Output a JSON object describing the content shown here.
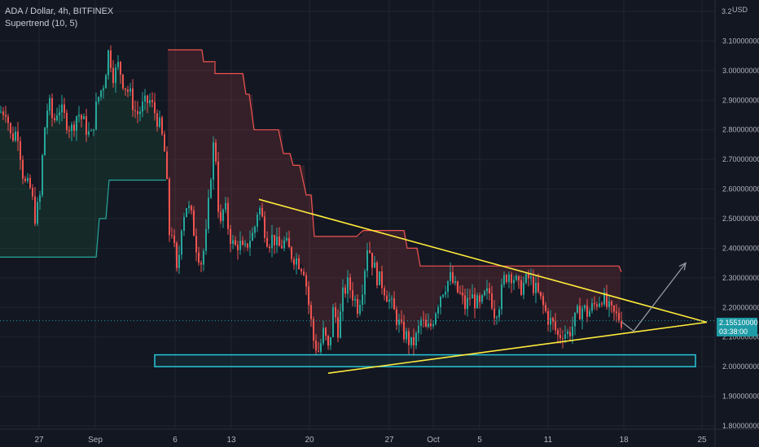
{
  "header": {
    "title": "ADA / Dollar, 4h, BITFINEX",
    "indicator": "Supertrend (10, 5)"
  },
  "price_scale": {
    "unit": "USD",
    "last_price": "2.155",
    "last_price_suffix": "10000",
    "countdown": "03:38:00"
  },
  "chart_data": {
    "type": "candlestick",
    "symbol": "ADA / Dollar",
    "interval": "4h",
    "exchange": "BITFINEX",
    "indicator": "Supertrend (10, 5)",
    "x_ticks": [
      "27",
      "Sep",
      "6",
      "13",
      "20",
      "27",
      "Oct",
      "5",
      "11",
      "18",
      "25"
    ],
    "y_ticks": [
      "3.2",
      "3.100000000",
      "3.000000000",
      "2.900000000",
      "2.800000000",
      "2.700000000",
      "2.600000000",
      "2.500000000",
      "2.400000000",
      "2.300000000",
      "2.200000000",
      "2.100000000",
      "2.000000000",
      "1.900000000",
      "1.800000000"
    ],
    "ylim": [
      1.8,
      3.2
    ],
    "price_path": [
      [
        0,
        2.86
      ],
      [
        8,
        2.87
      ],
      [
        14,
        2.77
      ],
      [
        22,
        2.8
      ],
      [
        30,
        2.62
      ],
      [
        38,
        2.6
      ],
      [
        44,
        2.5
      ],
      [
        50,
        2.58
      ],
      [
        54,
        2.78
      ],
      [
        60,
        2.9
      ],
      [
        66,
        2.82
      ],
      [
        72,
        2.88
      ],
      [
        80,
        2.84
      ],
      [
        88,
        2.8
      ],
      [
        96,
        2.86
      ],
      [
        104,
        2.82
      ],
      [
        112,
        2.77
      ],
      [
        120,
        2.9
      ],
      [
        128,
        2.96
      ],
      [
        134,
        3.07
      ],
      [
        140,
        2.98
      ],
      [
        146,
        3.02
      ],
      [
        152,
        2.96
      ],
      [
        160,
        2.92
      ],
      [
        168,
        2.85
      ],
      [
        176,
        2.88
      ],
      [
        184,
        2.9
      ],
      [
        192,
        2.85
      ],
      [
        198,
        2.8
      ],
      [
        204,
        2.7
      ],
      [
        208,
        2.45
      ],
      [
        212,
        2.46
      ],
      [
        218,
        2.3
      ],
      [
        224,
        2.5
      ],
      [
        230,
        2.55
      ],
      [
        236,
        2.5
      ],
      [
        242,
        2.4
      ],
      [
        248,
        2.35
      ],
      [
        254,
        2.45
      ],
      [
        258,
        2.6
      ],
      [
        262,
        2.75
      ],
      [
        266,
        2.7
      ],
      [
        270,
        2.45
      ],
      [
        276,
        2.55
      ],
      [
        282,
        2.45
      ],
      [
        288,
        2.4
      ],
      [
        294,
        2.42
      ],
      [
        300,
        2.38
      ],
      [
        306,
        2.43
      ],
      [
        312,
        2.45
      ],
      [
        318,
        2.55
      ],
      [
        324,
        2.48
      ],
      [
        330,
        2.42
      ],
      [
        336,
        2.44
      ],
      [
        342,
        2.4
      ],
      [
        350,
        2.42
      ],
      [
        358,
        2.38
      ],
      [
        366,
        2.36
      ],
      [
        374,
        2.33
      ],
      [
        380,
        2.2
      ],
      [
        386,
        2.08
      ],
      [
        392,
        2.05
      ],
      [
        398,
        2.12
      ],
      [
        404,
        2.05
      ],
      [
        410,
        2.2
      ],
      [
        416,
        2.12
      ],
      [
        422,
        2.25
      ],
      [
        428,
        2.28
      ],
      [
        434,
        2.24
      ],
      [
        440,
        2.2
      ],
      [
        446,
        2.28
      ],
      [
        452,
        2.42
      ],
      [
        458,
        2.35
      ],
      [
        464,
        2.3
      ],
      [
        470,
        2.28
      ],
      [
        476,
        2.24
      ],
      [
        482,
        2.2
      ],
      [
        488,
        2.16
      ],
      [
        494,
        2.12
      ],
      [
        500,
        2.1
      ],
      [
        506,
        2.07
      ],
      [
        512,
        2.1
      ],
      [
        518,
        2.16
      ],
      [
        524,
        2.12
      ],
      [
        530,
        2.14
      ],
      [
        536,
        2.2
      ],
      [
        542,
        2.25
      ],
      [
        548,
        2.28
      ],
      [
        554,
        2.3
      ],
      [
        560,
        2.26
      ],
      [
        566,
        2.24
      ],
      [
        572,
        2.2
      ],
      [
        578,
        2.24
      ],
      [
        584,
        2.22
      ],
      [
        590,
        2.2
      ],
      [
        596,
        2.24
      ],
      [
        602,
        2.25
      ],
      [
        608,
        2.18
      ],
      [
        614,
        2.22
      ],
      [
        620,
        2.3
      ],
      [
        626,
        2.32
      ],
      [
        632,
        2.3
      ],
      [
        638,
        2.26
      ],
      [
        644,
        2.28
      ],
      [
        650,
        2.3
      ],
      [
        656,
        2.27
      ],
      [
        662,
        2.24
      ],
      [
        668,
        2.2
      ],
      [
        674,
        2.16
      ],
      [
        680,
        2.14
      ],
      [
        686,
        2.1
      ],
      [
        692,
        2.12
      ],
      [
        698,
        2.11
      ],
      [
        704,
        2.14
      ],
      [
        710,
        2.18
      ],
      [
        716,
        2.2
      ],
      [
        722,
        2.18
      ],
      [
        728,
        2.2
      ],
      [
        734,
        2.22
      ],
      [
        740,
        2.24
      ],
      [
        746,
        2.2
      ],
      [
        752,
        2.18
      ],
      [
        758,
        2.17
      ],
      [
        764,
        2.155
      ]
    ],
    "supertrend_up": [
      [
        0,
        2.37
      ],
      [
        60,
        2.37
      ],
      [
        118,
        2.37
      ],
      [
        122,
        2.5
      ],
      [
        130,
        2.5
      ],
      [
        134,
        2.63
      ],
      [
        204,
        2.63
      ]
    ],
    "supertrend_down": [
      [
        206,
        3.07
      ],
      [
        248,
        3.07
      ],
      [
        250,
        3.03
      ],
      [
        264,
        3.03
      ],
      [
        264,
        2.99
      ],
      [
        298,
        2.99
      ],
      [
        302,
        2.92
      ],
      [
        306,
        2.92
      ],
      [
        312,
        2.8
      ],
      [
        342,
        2.8
      ],
      [
        348,
        2.72
      ],
      [
        356,
        2.72
      ],
      [
        360,
        2.68
      ],
      [
        368,
        2.68
      ],
      [
        376,
        2.58
      ],
      [
        382,
        2.58
      ],
      [
        386,
        2.44
      ],
      [
        438,
        2.44
      ],
      [
        446,
        2.46
      ],
      [
        496,
        2.46
      ],
      [
        500,
        2.4
      ],
      [
        512,
        2.4
      ],
      [
        516,
        2.34
      ],
      [
        760,
        2.34
      ],
      [
        763,
        2.32
      ]
    ],
    "trendlines": [
      {
        "color": "#ffeb3b",
        "from": [
          318,
          2.565
        ],
        "to": [
          868,
          2.15
        ]
      },
      {
        "color": "#ffeb3b",
        "from": [
          403,
          1.978
        ],
        "to": [
          868,
          2.15
        ]
      }
    ],
    "support_zone": {
      "y_low": 2.0,
      "y_high": 2.04,
      "x_from": 190,
      "x_to": 854,
      "color": "#26c6da"
    },
    "projection_path": [
      [
        764,
        2.15
      ],
      [
        778,
        2.12
      ],
      [
        842,
        2.35
      ]
    ],
    "last_price": 2.155
  }
}
